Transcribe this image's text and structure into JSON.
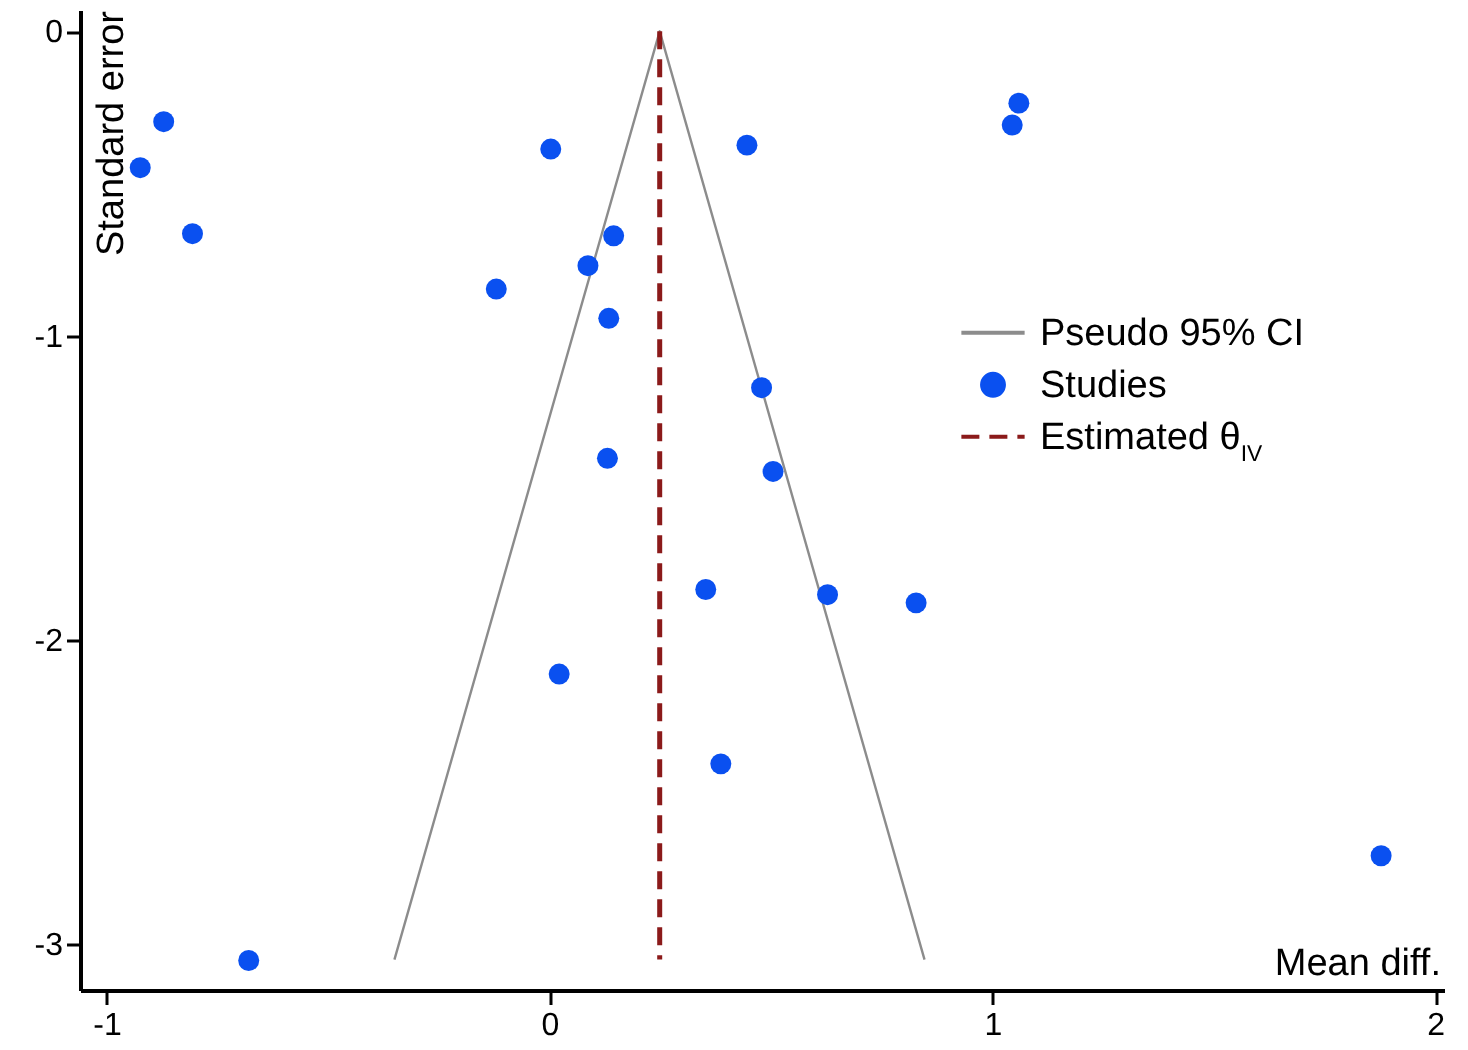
{
  "chart_data": {
    "type": "scatter",
    "xlabel": "Mean diff.",
    "ylabel": "Standard error",
    "xlim": [
      -1.06,
      2.02
    ],
    "ylim": [
      -3.15,
      0.07
    ],
    "xticks": [
      -1,
      0,
      1,
      2
    ],
    "yticks": [
      -3,
      -2,
      -1,
      0
    ],
    "grid": false,
    "legend": "right",
    "series": [
      {
        "type": "line",
        "name": "Pseudo 95% CI",
        "color": "#8c8c8c",
        "line_style": "solid",
        "x": [
          -0.35,
          0.249,
          0.847
        ],
        "values": [
          -3.05,
          0,
          -3.05
        ]
      },
      {
        "name": "Studies",
        "color": "#0a50f0",
        "marker": "circle",
        "x": [
          -0.871,
          -0.924,
          -0.806,
          0.003,
          -0.12,
          0.145,
          0.087,
          0.134,
          0.131,
          0.446,
          1.06,
          1.045,
          0.479,
          0.505,
          0.353,
          0.022,
          0.387,
          -0.679,
          0.628,
          0.828,
          1.878
        ],
        "values": [
          -0.297,
          -0.448,
          -0.665,
          -0.387,
          -0.847,
          -0.672,
          -0.77,
          -0.943,
          -1.403,
          -0.374,
          -0.236,
          -0.308,
          -1.171,
          -1.446,
          -1.834,
          -2.112,
          -2.407,
          -3.053,
          -1.851,
          -1.878,
          -2.709
        ]
      },
      {
        "type": "line",
        "name": "Estimated θ$_{IV}$",
        "color": "#8b1a1a",
        "line_style": "dashed",
        "x": [
          0.249,
          0.249
        ],
        "values": [
          0,
          -3.05
        ]
      }
    ]
  }
}
